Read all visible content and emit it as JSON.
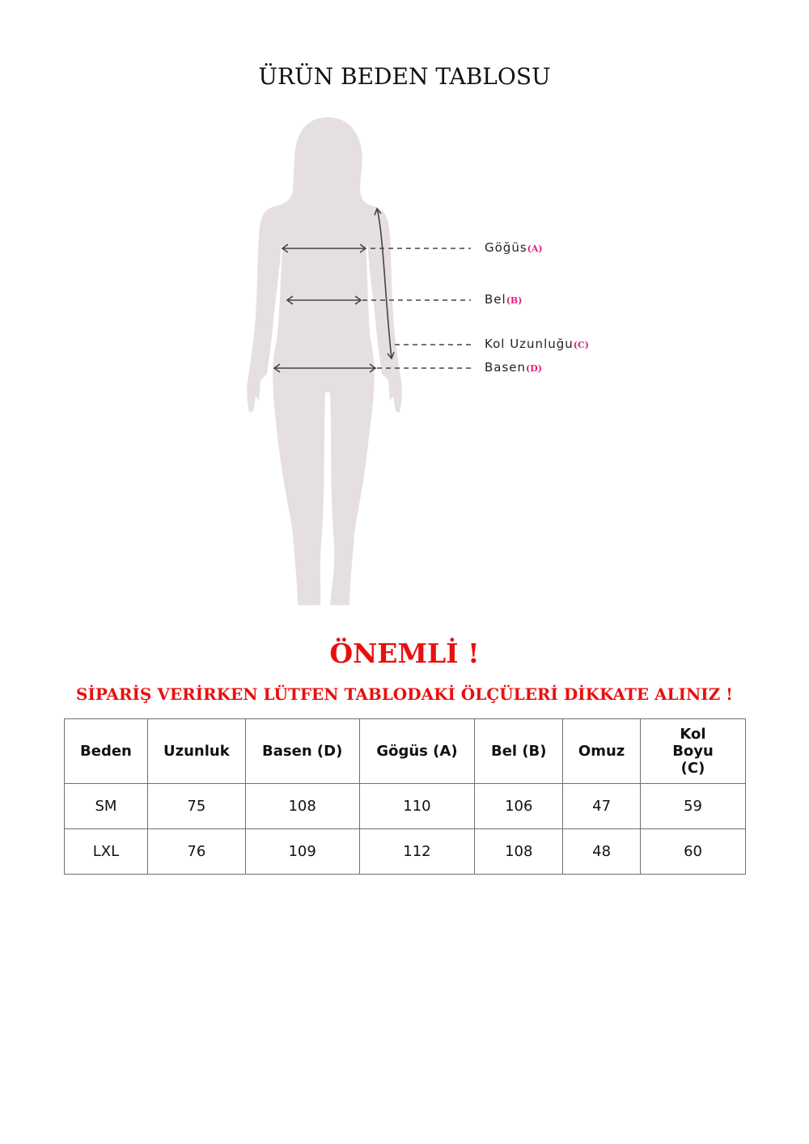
{
  "title": "ÜRÜN BEDEN TABLOSU",
  "figure": {
    "labels": [
      {
        "text": "Göğüs",
        "tag": "(A)"
      },
      {
        "text": "Bel",
        "tag": "(B)"
      },
      {
        "text": "Kol Uzunluğu",
        "tag": "(C)"
      },
      {
        "text": "Basen",
        "tag": "(D)"
      }
    ],
    "silhouette_color": "#e6dfe0",
    "tag_color": "#e0207a"
  },
  "important": "ÖNEMLİ !",
  "note": "SİPARİŞ VERİRKEN LÜTFEN TABLODAKİ ÖLÇÜLERİ DİKKATE ALINIZ !",
  "accent_color": "#e8100f",
  "table": {
    "headers": [
      "Beden",
      "Uzunluk",
      "Basen (D)",
      "Gögüs (A)",
      "Bel (B)",
      "Omuz",
      "Kol Boyu (C)"
    ],
    "rows": [
      [
        "SM",
        "75",
        "108",
        "110",
        "106",
        "47",
        "59"
      ],
      [
        "LXL",
        "76",
        "109",
        "112",
        "108",
        "48",
        "60"
      ]
    ]
  }
}
